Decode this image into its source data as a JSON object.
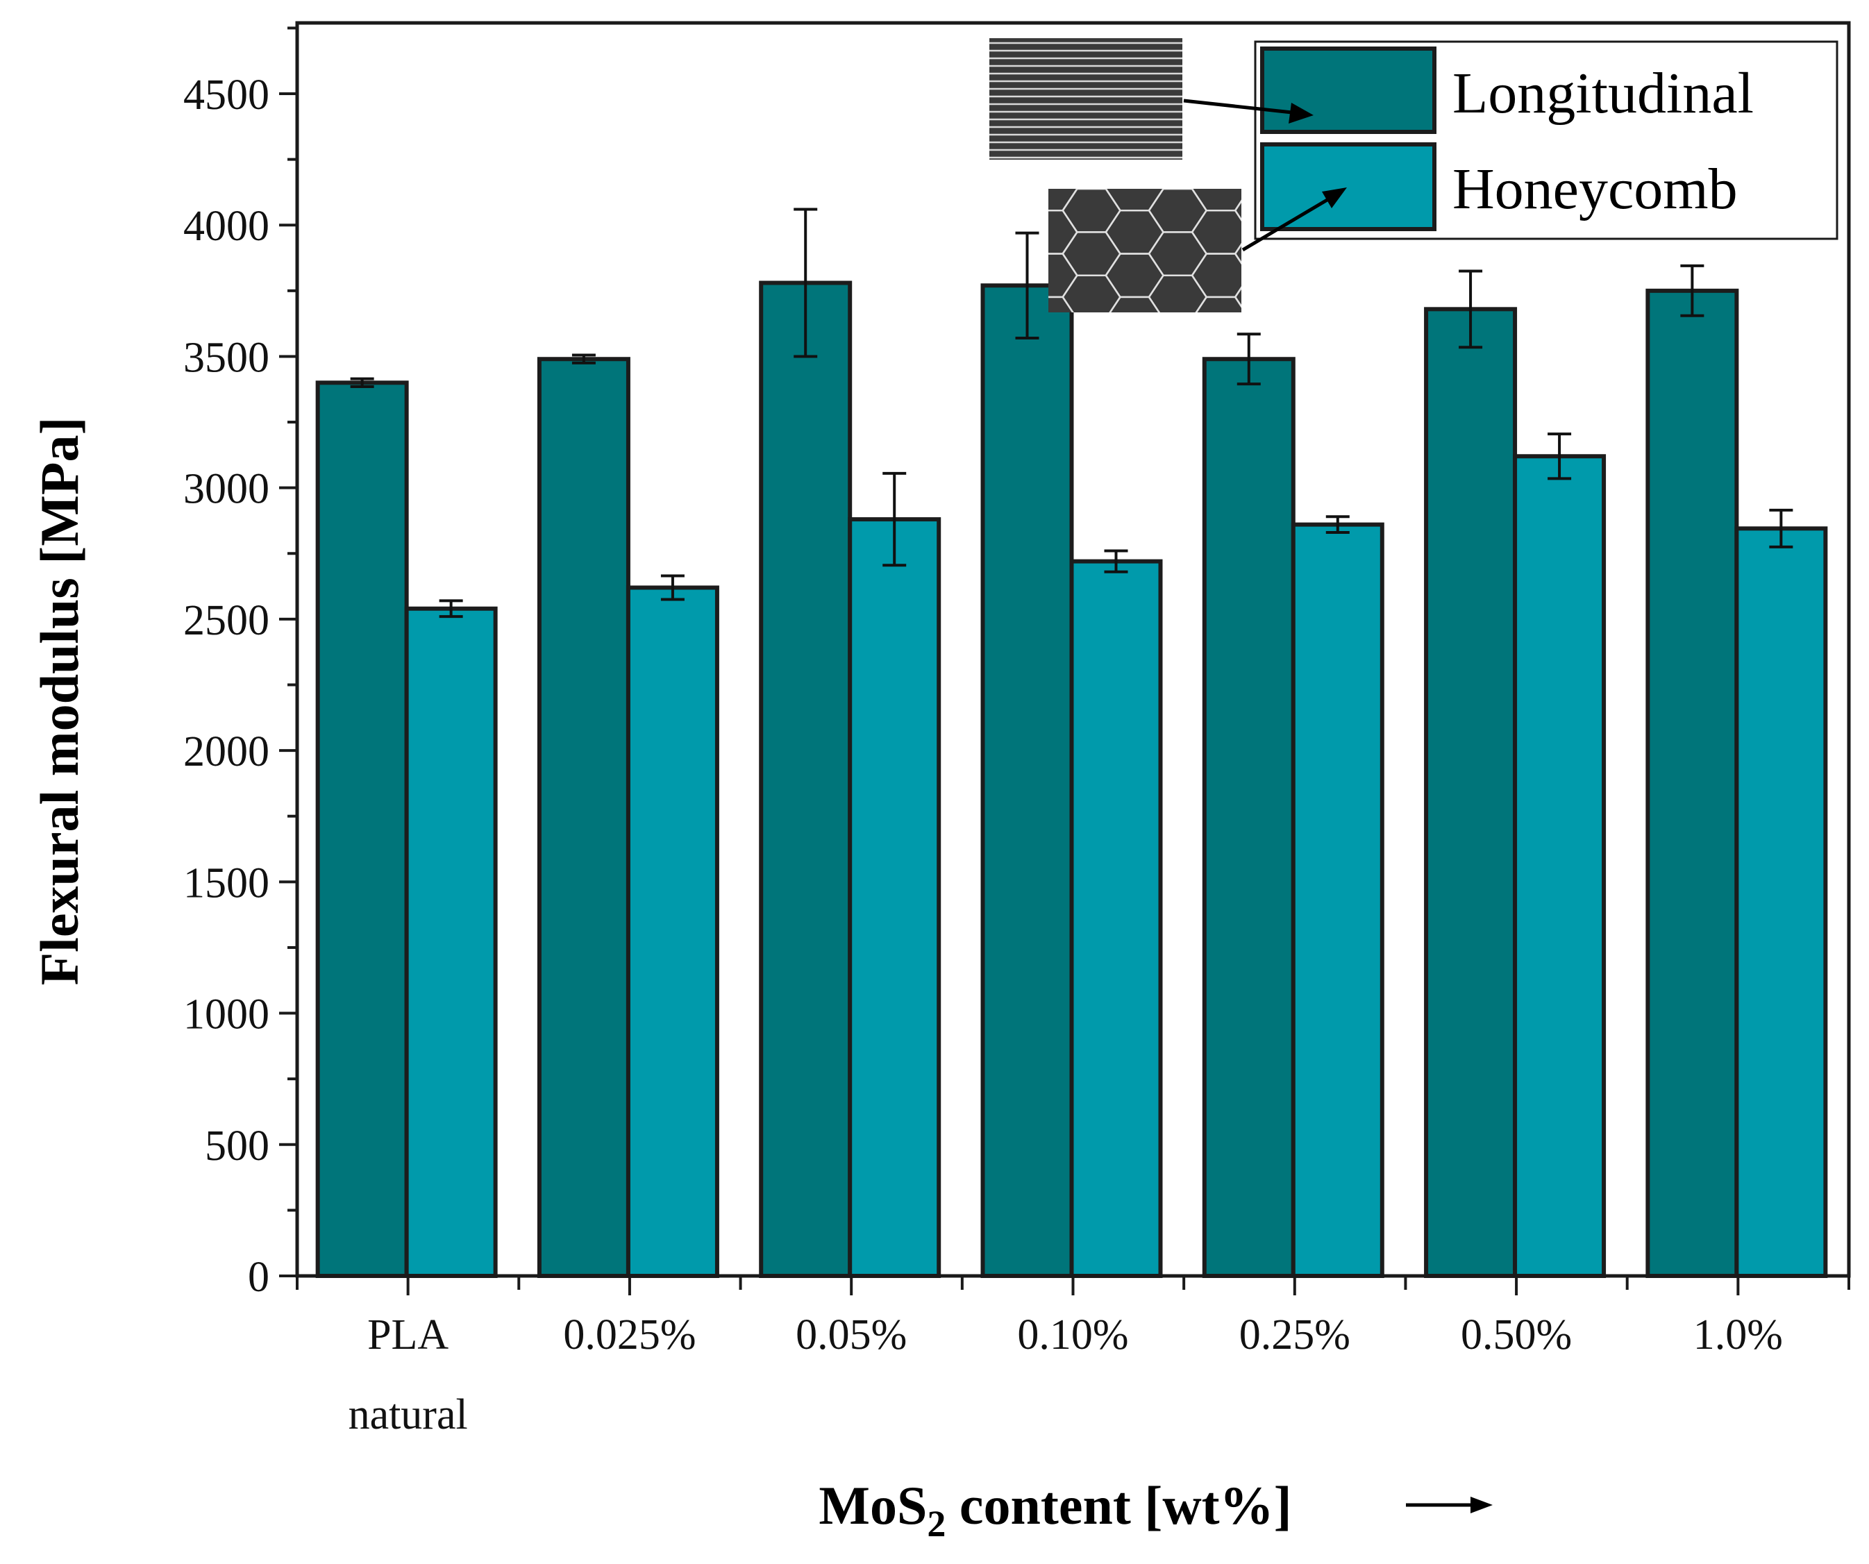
{
  "chart_data": {
    "type": "bar",
    "title": "",
    "ylabel": "Flexural modulus [MPa]",
    "xlabel_main": "MoS",
    "xlabel_sub": "2",
    "xlabel_rest": " content [wt%]",
    "ylim": [
      0,
      5000
    ],
    "yticks": [
      0,
      500,
      1000,
      1500,
      2000,
      2500,
      3000,
      3500,
      4000,
      4500
    ],
    "ytick_labels": [
      "0",
      "500",
      "1000",
      "1500",
      "2000",
      "2500",
      "3000",
      "3500",
      "4000",
      "4500"
    ],
    "categories": [
      {
        "line1": "PLA",
        "line2": "natural"
      },
      {
        "line1": "0.025%",
        "line2": ""
      },
      {
        "line1": "0.05%",
        "line2": ""
      },
      {
        "line1": "0.10%",
        "line2": ""
      },
      {
        "line1": "0.25%",
        "line2": ""
      },
      {
        "line1": "0.50%",
        "line2": ""
      },
      {
        "line1": "1.0%",
        "line2": ""
      }
    ],
    "series": [
      {
        "name": "Longitudinal",
        "color": "#00757a",
        "values": [
          3400,
          3490,
          3780,
          3770,
          3490,
          3680,
          3750
        ],
        "errors": [
          15,
          15,
          280,
          200,
          95,
          145,
          95
        ]
      },
      {
        "name": "Honeycomb",
        "color": "#009aab",
        "values": [
          2540,
          2620,
          2880,
          2720,
          2860,
          3120,
          2845
        ],
        "errors": [
          30,
          45,
          175,
          40,
          30,
          85,
          70
        ]
      }
    ],
    "legend_position": "top-right",
    "grid": false
  },
  "colors": {
    "bar_outline": "#1c1c1c",
    "inset_fill": "#3a3a3a",
    "axis": "#1a1a1a"
  }
}
